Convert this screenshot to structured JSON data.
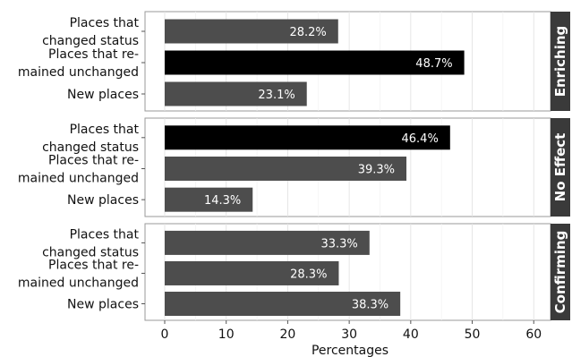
{
  "chart_data": {
    "type": "bar",
    "orientation": "horizontal",
    "xlabel": "Percentages",
    "xlim": [
      0,
      62
    ],
    "x_ticks": [
      0,
      10,
      20,
      30,
      40,
      50,
      60
    ],
    "grid": true,
    "highlight_color": "#000000",
    "bar_color": "#4d4d4d",
    "strip_color": "#3a3a3a",
    "facets": [
      {
        "name": "Enriching",
        "categories": [
          {
            "label": [
              "Places that",
              "changed status"
            ],
            "value": 28.2,
            "value_label": "28.2%",
            "highlight": false
          },
          {
            "label": [
              "Places that re-",
              "mained unchanged"
            ],
            "value": 48.7,
            "value_label": "48.7%",
            "highlight": true
          },
          {
            "label": [
              "New places"
            ],
            "value": 23.1,
            "value_label": "23.1%",
            "highlight": false
          }
        ]
      },
      {
        "name": "No Effect",
        "categories": [
          {
            "label": [
              "Places that",
              "changed status"
            ],
            "value": 46.4,
            "value_label": "46.4%",
            "highlight": true
          },
          {
            "label": [
              "Places that re-",
              "mained unchanged"
            ],
            "value": 39.3,
            "value_label": "39.3%",
            "highlight": false
          },
          {
            "label": [
              "New places"
            ],
            "value": 14.3,
            "value_label": "14.3%",
            "highlight": false
          }
        ]
      },
      {
        "name": "Confirming",
        "categories": [
          {
            "label": [
              "Places that",
              "changed status"
            ],
            "value": 33.3,
            "value_label": "33.3%",
            "highlight": false
          },
          {
            "label": [
              "Places that re-",
              "mained unchanged"
            ],
            "value": 28.3,
            "value_label": "28.3%",
            "highlight": false
          },
          {
            "label": [
              "New places"
            ],
            "value": 38.3,
            "value_label": "38.3%",
            "highlight": false
          }
        ]
      }
    ]
  }
}
